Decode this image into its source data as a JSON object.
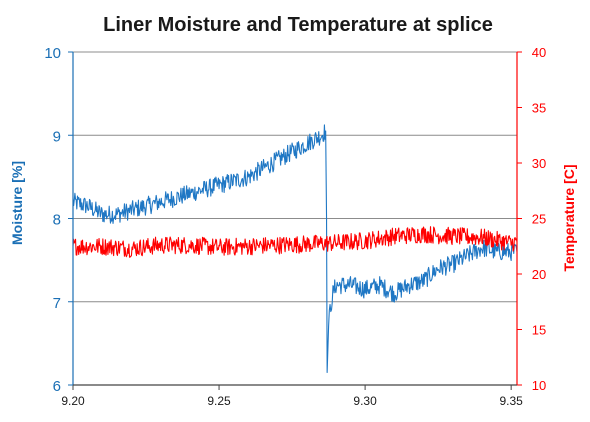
{
  "chart_data": {
    "type": "line",
    "title": "Liner Moisture and Temperature at splice",
    "xlabel": "",
    "xlim": [
      9.2,
      9.352
    ],
    "xticks": [
      "9.20",
      "9.25",
      "9.30",
      "9.35"
    ],
    "xtick_values": [
      9.2,
      9.25,
      9.3,
      9.35
    ],
    "y_left": {
      "label": "Moisture [%]",
      "lim": [
        6,
        10
      ],
      "ticks": [
        "6",
        "7",
        "8",
        "9",
        "10"
      ],
      "tick_values": [
        6,
        7,
        8,
        9,
        10
      ],
      "color": "#1a6fb5"
    },
    "y_right": {
      "label": "Temperature [C]",
      "lim": [
        10,
        40
      ],
      "ticks": [
        "10",
        "15",
        "20",
        "25",
        "30",
        "35",
        "40"
      ],
      "tick_values": [
        10,
        15,
        20,
        25,
        30,
        35,
        40
      ],
      "color": "#ff0000"
    },
    "grid": "horizontal",
    "series": [
      {
        "name": "Moisture",
        "axis": "left",
        "color": "#1f77c4",
        "x": [
          9.2,
          9.205,
          9.21,
          9.215,
          9.22,
          9.225,
          9.23,
          9.235,
          9.24,
          9.245,
          9.25,
          9.255,
          9.26,
          9.265,
          9.27,
          9.275,
          9.28,
          9.285,
          9.2865,
          9.2868,
          9.287,
          9.2875,
          9.288,
          9.2885,
          9.289,
          9.29,
          9.295,
          9.3,
          9.305,
          9.31,
          9.315,
          9.32,
          9.325,
          9.33,
          9.335,
          9.34,
          9.345,
          9.35,
          9.352
        ],
        "y": [
          8.2,
          8.15,
          8.05,
          8.05,
          8.1,
          8.15,
          8.2,
          8.25,
          8.3,
          8.35,
          8.4,
          8.45,
          8.5,
          8.6,
          8.7,
          8.8,
          8.9,
          9.0,
          9.05,
          8.0,
          6.15,
          6.7,
          6.9,
          7.0,
          7.1,
          7.2,
          7.2,
          7.15,
          7.2,
          7.1,
          7.2,
          7.25,
          7.4,
          7.45,
          7.55,
          7.65,
          7.6,
          7.6,
          7.6
        ]
      },
      {
        "name": "Temperature",
        "axis": "right",
        "color": "#ff0000",
        "x": [
          9.2,
          9.21,
          9.22,
          9.23,
          9.24,
          9.25,
          9.26,
          9.27,
          9.28,
          9.29,
          9.3,
          9.31,
          9.32,
          9.33,
          9.34,
          9.35,
          9.352
        ],
        "y": [
          22.5,
          22.5,
          22.3,
          22.6,
          22.6,
          22.4,
          22.5,
          22.6,
          22.7,
          22.8,
          23.0,
          23.4,
          23.6,
          23.4,
          23.3,
          22.8,
          22.9
        ]
      }
    ]
  }
}
